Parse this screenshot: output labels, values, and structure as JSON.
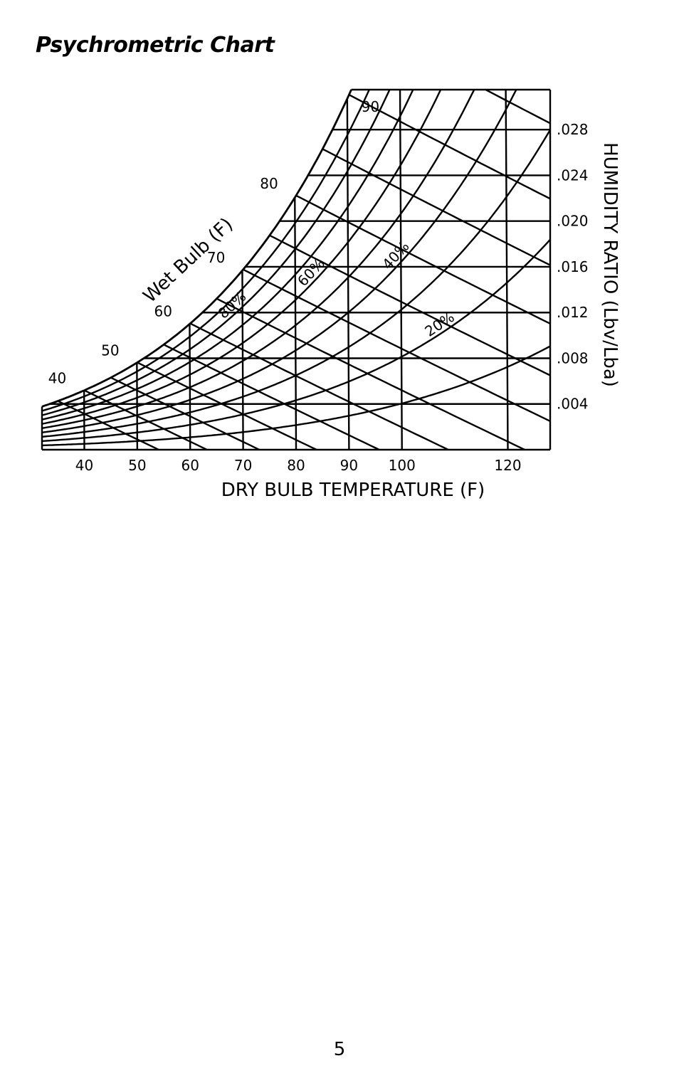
{
  "page_title": "Psychrometric Chart",
  "page_number": "5",
  "chart_data": {
    "type": "line",
    "title": "",
    "xlabel": "DRY BULB TEMPERATURE (F)",
    "ylabel": "HUMIDITY RATIO (Lbv/Lba)",
    "xlim": [
      32,
      128
    ],
    "ylim": [
      0,
      0.0315
    ],
    "grid": true,
    "x_ticks": [
      40,
      50,
      60,
      70,
      80,
      90,
      100,
      120
    ],
    "x_tick_labels": [
      "40",
      "50",
      "60",
      "70",
      "80",
      "90",
      "100",
      "120"
    ],
    "y_ticks": [
      0.004,
      0.008,
      0.012,
      0.016,
      0.02,
      0.024,
      0.028
    ],
    "y_tick_labels": [
      ".004",
      ".008",
      ".012",
      ".016",
      ".020",
      ".024",
      ".028"
    ],
    "wet_bulb_label": "Wet Bulb (F)",
    "wet_bulb_values": [
      40,
      50,
      60,
      70,
      80,
      90
    ],
    "wet_bulb_labels": [
      "40",
      "50",
      "60",
      "70",
      "80",
      "90"
    ],
    "rh_series_labels": [
      "80%",
      "60%",
      "40%",
      "20%"
    ],
    "relative_humidity_series": [
      {
        "name": "80%",
        "rh": 0.8
      },
      {
        "name": "60%",
        "rh": 0.6
      },
      {
        "name": "40%",
        "rh": 0.4
      },
      {
        "name": "20%",
        "rh": 0.2
      }
    ],
    "colors": {
      "line": "#000000",
      "background": "#ffffff"
    }
  }
}
